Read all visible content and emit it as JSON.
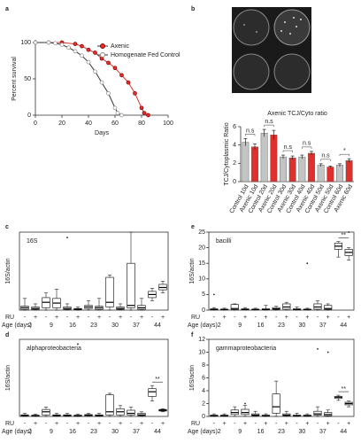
{
  "chart_data": [
    {
      "type": "line",
      "panel": "a",
      "ylabel": "Percent survival",
      "xlabel": "Days",
      "xlim": [
        0,
        100
      ],
      "ylim": [
        0,
        100
      ],
      "xticks": [
        0,
        20,
        40,
        60,
        80,
        100
      ],
      "yticks": [
        0,
        50,
        100
      ],
      "legend": "top-right",
      "series": [
        {
          "name": "Axenic",
          "color": "#e0302c",
          "marker": "filled",
          "x": [
            0,
            10,
            20,
            30,
            35,
            40,
            45,
            50,
            55,
            60,
            65,
            70,
            75,
            80,
            82,
            85
          ],
          "values": [
            100,
            100,
            100,
            98,
            95,
            90,
            86,
            78,
            72,
            65,
            55,
            45,
            30,
            10,
            3,
            0
          ]
        },
        {
          "name": "Homogenate Fed Control",
          "color": "#888888",
          "marker": "open",
          "x": [
            0,
            10,
            15,
            20,
            25,
            30,
            35,
            40,
            45,
            50,
            55,
            60,
            62,
            65
          ],
          "values": [
            100,
            100,
            99,
            97,
            93,
            88,
            82,
            73,
            60,
            45,
            30,
            10,
            3,
            0
          ]
        }
      ]
    },
    {
      "type": "bar",
      "panel": "b",
      "title": "Axenic TCJ/Cyto ratio",
      "ylabel": "TCJ/Cytoplasmic Ratio",
      "ylim": [
        0,
        6
      ],
      "yticks": [
        0,
        2,
        4,
        6
      ],
      "categories": [
        "Control 10d",
        "Axenic 10d",
        "Control 20d",
        "Axenic 20d",
        "Control 30d",
        "Axenic 30d",
        "Control 40d",
        "Axenic 40d",
        "Control 50d",
        "Axenic 50d",
        "Control 60d",
        "Axenic 60d"
      ],
      "values": [
        4.3,
        3.8,
        5.3,
        5.1,
        2.7,
        2.6,
        2.7,
        3.1,
        1.8,
        1.6,
        1.8,
        2.3
      ],
      "errors": [
        0.4,
        0.3,
        0.4,
        0.5,
        0.2,
        0.2,
        0.2,
        0.2,
        0.15,
        0.1,
        0.15,
        0.2
      ],
      "colors": [
        "#c4c4c4",
        "#e0302c",
        "#c4c4c4",
        "#e0302c",
        "#c4c4c4",
        "#e0302c",
        "#c4c4c4",
        "#e0302c",
        "#c4c4c4",
        "#e0302c",
        "#c4c4c4",
        "#e0302c"
      ],
      "pair_annotations": [
        "n.s",
        "n.s",
        "n.s",
        "n.s",
        "n.s",
        "*"
      ]
    },
    {
      "type": "box",
      "panel": "c",
      "label": "16S",
      "ylabel": "16S/actin",
      "ylim": [
        0,
        10
      ],
      "category_label": "RU",
      "group_label": "Age (days)",
      "categories": [
        "-",
        "+",
        "-",
        "+",
        "-",
        "+",
        "-",
        "+",
        "-",
        "+",
        "-",
        "+",
        "-",
        "+"
      ],
      "groups": [
        "2",
        "9",
        "16",
        "23",
        "30",
        "37",
        "44"
      ],
      "boxes": [
        [
          0,
          0.1,
          0.3,
          0.5,
          1.5
        ],
        [
          0,
          0.1,
          0.2,
          0.4,
          0.8
        ],
        [
          0,
          0.3,
          1,
          1.6,
          2.2
        ],
        [
          0,
          0.3,
          0.9,
          1.5,
          2.7
        ],
        [
          0,
          0.1,
          0.2,
          0.4,
          0.8
        ],
        [
          0,
          0.05,
          0.1,
          0.2,
          0.4
        ],
        [
          0,
          0.2,
          0.4,
          0.6,
          1.2
        ],
        [
          0,
          0.1,
          0.3,
          0.5,
          1.5
        ],
        [
          0,
          0.4,
          1,
          4.2,
          4.5
        ],
        [
          0,
          0.1,
          0.2,
          0.4,
          0.8
        ],
        [
          0,
          0.3,
          0.6,
          6,
          10
        ],
        [
          0,
          0.1,
          0.3,
          0.6,
          1.5
        ],
        [
          1.2,
          1.6,
          2,
          2.4,
          2.8
        ],
        [
          2.2,
          2.6,
          2.9,
          3.3,
          3.7
        ]
      ],
      "outliers": [
        [],
        [],
        [],
        [],
        [
          9.3
        ],
        [],
        [],
        [],
        [],
        [],
        [],
        [],
        [],
        []
      ]
    },
    {
      "type": "box",
      "panel": "d",
      "label": "alphaproteobacteria",
      "ylabel": "16S/actin",
      "ylim": [
        0,
        50
      ],
      "category_label": "RU",
      "group_label": "Age (days)",
      "categories": [
        "-",
        "+",
        "-",
        "+",
        "-",
        "+",
        "-",
        "+",
        "-",
        "+",
        "-",
        "+",
        "-",
        "+"
      ],
      "groups": [
        "2",
        "9",
        "16",
        "23",
        "30",
        "37",
        "44"
      ],
      "boxes": [
        [
          0,
          0.3,
          0.6,
          1,
          2
        ],
        [
          0,
          0.2,
          0.5,
          0.8,
          1.5
        ],
        [
          0,
          1,
          3,
          4.5,
          6
        ],
        [
          0,
          0.3,
          0.6,
          1,
          2
        ],
        [
          0,
          0.3,
          0.6,
          1,
          2
        ],
        [
          0,
          0.2,
          0.4,
          0.8,
          1.5
        ],
        [
          0,
          0.3,
          0.8,
          1.2,
          2
        ],
        [
          0,
          0.2,
          0.5,
          1,
          2
        ],
        [
          0,
          1,
          3,
          14,
          15
        ],
        [
          0,
          1,
          3,
          5,
          7
        ],
        [
          0,
          1,
          2,
          4,
          6
        ],
        [
          0,
          0.5,
          1,
          2,
          3
        ],
        [
          10,
          13,
          16,
          18,
          20
        ],
        [
          3,
          3.5,
          4,
          4.5,
          5
        ]
      ],
      "outliers": [
        [],
        [],
        [],
        [],
        [],
        [
          47
        ],
        [],
        [],
        [],
        [],
        [],
        [],
        [],
        []
      ],
      "group_annotations": [
        null,
        null,
        null,
        null,
        null,
        null,
        "**"
      ]
    },
    {
      "type": "box",
      "panel": "e",
      "label": "bacilli",
      "ylabel": "16S/actin",
      "ylim": [
        0,
        25
      ],
      "yticks": [
        0,
        5,
        10,
        15,
        20,
        25
      ],
      "category_label": "RU",
      "group_label": "Age (days)",
      "categories": [
        "-",
        "+",
        "-",
        "+",
        "-",
        "+",
        "-",
        "+",
        "-",
        "+",
        "-",
        "+",
        "-",
        "+"
      ],
      "groups": [
        "2",
        "9",
        "16",
        "23",
        "30",
        "37",
        "44"
      ],
      "boxes": [
        [
          0,
          0.1,
          0.2,
          0.4,
          0.8
        ],
        [
          0,
          0.1,
          0.2,
          0.3,
          0.6
        ],
        [
          0,
          0.2,
          0.5,
          1.8,
          2
        ],
        [
          0,
          0.1,
          0.2,
          0.4,
          0.8
        ],
        [
          0,
          0.1,
          0.2,
          0.3,
          0.6
        ],
        [
          0,
          0.1,
          0.2,
          0.4,
          1.5
        ],
        [
          0,
          0.2,
          0.4,
          0.8,
          1.2
        ],
        [
          0,
          0.3,
          1,
          2,
          2.5
        ],
        [
          0,
          0.1,
          0.2,
          0.4,
          1
        ],
        [
          0,
          0.1,
          0.2,
          0.3,
          0.6
        ],
        [
          0,
          0.3,
          1,
          2,
          3
        ],
        [
          0,
          0.2,
          0.5,
          1.5,
          2
        ],
        [
          17,
          19.5,
          20.5,
          21.5,
          22
        ],
        [
          16,
          17.5,
          18.5,
          19.5,
          20
        ]
      ],
      "outliers": [
        [
          5
        ],
        [],
        [],
        [],
        [],
        [],
        [],
        [],
        [],
        [
          15
        ],
        [],
        [],
        [],
        [
          25
        ]
      ],
      "group_annotations": [
        null,
        null,
        null,
        null,
        null,
        null,
        "**"
      ]
    },
    {
      "type": "box",
      "panel": "f",
      "label": "gammaproteobacteria",
      "ylabel": "16S/actin",
      "ylim": [
        0,
        12
      ],
      "yticks": [
        0,
        2,
        4,
        6,
        8,
        10,
        12
      ],
      "category_label": "RU",
      "group_label": "Age (days)",
      "categories": [
        "-",
        "+",
        "-",
        "+",
        "-",
        "+",
        "-",
        "+",
        "-",
        "+",
        "-",
        "+",
        "-",
        "+"
      ],
      "groups": [
        "2",
        "9",
        "16",
        "23",
        "30",
        "37",
        "44"
      ],
      "boxes": [
        [
          0,
          0.05,
          0.1,
          0.2,
          0.4
        ],
        [
          0,
          0.05,
          0.1,
          0.2,
          0.4
        ],
        [
          0,
          0.3,
          0.6,
          1,
          1.5
        ],
        [
          0,
          0.3,
          0.6,
          1.1,
          1.7
        ],
        [
          0,
          0.1,
          0.2,
          0.4,
          0.8
        ],
        [
          0,
          0.05,
          0.1,
          0.2,
          0.4
        ],
        [
          0,
          0.5,
          1.5,
          3.5,
          5.5
        ],
        [
          0,
          0.1,
          0.2,
          0.4,
          0.8
        ],
        [
          0,
          0.05,
          0.1,
          0.2,
          0.5
        ],
        [
          0,
          0.05,
          0.1,
          0.2,
          0.4
        ],
        [
          0,
          0.2,
          0.4,
          0.8,
          1.5
        ],
        [
          0,
          0.1,
          0.3,
          0.6,
          1
        ],
        [
          2.5,
          2.8,
          3,
          3.1,
          3.3
        ],
        [
          1.5,
          1.8,
          2,
          2.2,
          2.4
        ]
      ],
      "outliers": [
        [],
        [],
        [],
        [
          2
        ],
        [],
        [],
        [],
        [],
        [],
        [],
        [
          10.5
        ],
        [
          10
        ],
        [],
        []
      ],
      "group_annotations": [
        null,
        null,
        null,
        null,
        null,
        null,
        "**"
      ]
    }
  ]
}
